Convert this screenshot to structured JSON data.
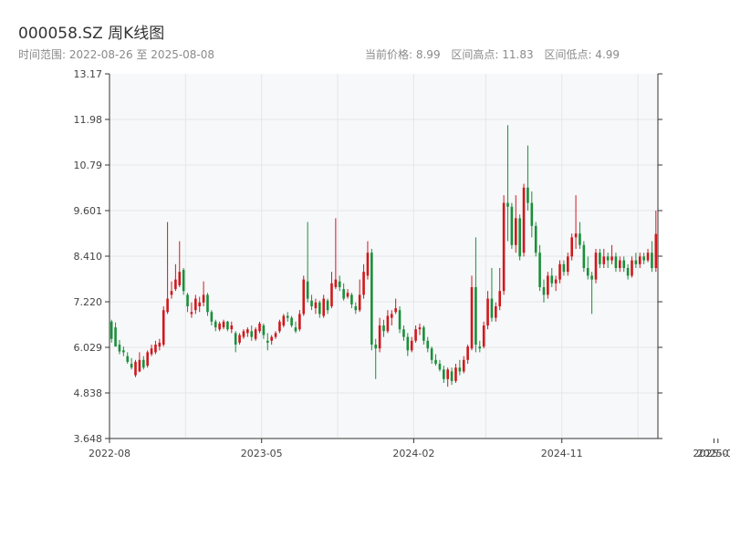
{
  "header": {
    "title": "000058.SZ 周K线图",
    "date_range_label": "时间范围:",
    "date_start": "2022-08-26",
    "date_sep": "至",
    "date_end": "2025-08-08",
    "current_price": "当前价格: 8.99",
    "range_high": "区间高点: 11.83",
    "range_low": "区间低点: 4.99"
  },
  "colors": {
    "up": "#d0181c",
    "down": "#1a8f3a",
    "plot_bg": "#f7f8fa",
    "grid": "#e3e6eb",
    "axis": "#333333"
  },
  "chart_data": {
    "type": "candlestick",
    "y_ticks": [
      "13.17",
      "11.98",
      "10.79",
      "9.601",
      "8.410",
      "7.220",
      "6.029",
      "4.838",
      "3.648"
    ],
    "ylim": [
      3.648,
      13.17
    ],
    "x_tick_labels": [
      "2022-08",
      "2023-05",
      "2024-02",
      "2024-11",
      "2025-07",
      "2025-08"
    ],
    "x_tick_weeks": [
      0,
      38,
      76,
      113,
      151,
      152
    ],
    "grid": true,
    "candles": [
      [
        6.7,
        6.75,
        6.15,
        6.25
      ],
      [
        6.55,
        6.68,
        6.05,
        6.05
      ],
      [
        6.1,
        6.22,
        5.85,
        5.92
      ],
      [
        5.95,
        6.05,
        5.8,
        5.9
      ],
      [
        5.8,
        5.9,
        5.6,
        5.65
      ],
      [
        5.6,
        5.75,
        5.45,
        5.5
      ],
      [
        5.3,
        5.7,
        5.25,
        5.65
      ],
      [
        5.4,
        5.9,
        5.38,
        5.7
      ],
      [
        5.7,
        5.8,
        5.45,
        5.5
      ],
      [
        5.55,
        5.95,
        5.5,
        5.9
      ],
      [
        5.85,
        6.1,
        5.8,
        6.0
      ],
      [
        5.9,
        6.2,
        5.85,
        6.1
      ],
      [
        6.05,
        6.25,
        5.95,
        6.15
      ],
      [
        6.1,
        7.1,
        6.05,
        7.0
      ],
      [
        6.95,
        9.3,
        6.9,
        7.3
      ],
      [
        7.4,
        7.75,
        7.3,
        7.5
      ],
      [
        7.55,
        8.2,
        7.5,
        7.8
      ],
      [
        7.65,
        8.8,
        7.6,
        8.0
      ],
      [
        8.05,
        8.1,
        7.4,
        7.5
      ],
      [
        7.4,
        7.45,
        6.95,
        7.1
      ],
      [
        6.9,
        7.2,
        6.8,
        6.95
      ],
      [
        7.0,
        7.4,
        6.9,
        7.3
      ],
      [
        7.1,
        7.35,
        6.95,
        7.2
      ],
      [
        7.2,
        7.75,
        7.1,
        7.4
      ],
      [
        7.4,
        7.45,
        6.85,
        6.95
      ],
      [
        6.95,
        7.0,
        6.6,
        6.7
      ],
      [
        6.7,
        6.75,
        6.45,
        6.55
      ],
      [
        6.5,
        6.7,
        6.45,
        6.65
      ],
      [
        6.55,
        6.75,
        6.5,
        6.7
      ],
      [
        6.7,
        6.72,
        6.45,
        6.5
      ],
      [
        6.5,
        6.7,
        6.4,
        6.6
      ],
      [
        6.4,
        6.45,
        5.9,
        6.1
      ],
      [
        6.15,
        6.4,
        6.1,
        6.35
      ],
      [
        6.3,
        6.5,
        6.25,
        6.45
      ],
      [
        6.4,
        6.55,
        6.3,
        6.5
      ],
      [
        6.45,
        6.6,
        6.2,
        6.3
      ],
      [
        6.25,
        6.55,
        6.2,
        6.5
      ],
      [
        6.45,
        6.7,
        6.4,
        6.65
      ],
      [
        6.6,
        6.65,
        6.25,
        6.35
      ],
      [
        6.2,
        6.4,
        5.95,
        6.15
      ],
      [
        6.2,
        6.35,
        6.1,
        6.3
      ],
      [
        6.3,
        6.45,
        6.25,
        6.4
      ],
      [
        6.45,
        6.75,
        6.4,
        6.7
      ],
      [
        6.6,
        6.9,
        6.55,
        6.85
      ],
      [
        6.85,
        6.95,
        6.7,
        6.8
      ],
      [
        6.8,
        6.85,
        6.55,
        6.6
      ],
      [
        6.55,
        6.7,
        6.4,
        6.45
      ],
      [
        6.5,
        7.0,
        6.45,
        6.9
      ],
      [
        6.9,
        7.9,
        6.85,
        7.8
      ],
      [
        7.75,
        9.3,
        7.2,
        7.3
      ],
      [
        7.25,
        7.4,
        7.0,
        7.1
      ],
      [
        7.05,
        7.3,
        6.9,
        7.2
      ],
      [
        7.2,
        7.25,
        6.8,
        6.9
      ],
      [
        6.85,
        7.4,
        6.8,
        7.3
      ],
      [
        7.25,
        7.3,
        6.9,
        7.0
      ],
      [
        7.1,
        8.0,
        7.05,
        7.7
      ],
      [
        7.6,
        9.4,
        7.55,
        7.8
      ],
      [
        7.75,
        7.9,
        7.5,
        7.6
      ],
      [
        7.55,
        7.7,
        7.25,
        7.3
      ],
      [
        7.35,
        7.55,
        7.3,
        7.45
      ],
      [
        7.4,
        7.45,
        7.05,
        7.15
      ],
      [
        7.1,
        7.2,
        6.9,
        7.0
      ],
      [
        7.0,
        7.8,
        6.95,
        7.4
      ],
      [
        7.4,
        8.2,
        7.3,
        8.0
      ],
      [
        7.9,
        8.8,
        7.8,
        8.5
      ],
      [
        8.5,
        8.6,
        5.95,
        6.1
      ],
      [
        6.1,
        6.25,
        5.2,
        6.0
      ],
      [
        6.0,
        6.8,
        5.9,
        6.6
      ],
      [
        6.6,
        6.75,
        6.3,
        6.45
      ],
      [
        6.45,
        7.0,
        6.4,
        6.85
      ],
      [
        6.8,
        7.0,
        6.6,
        6.9
      ],
      [
        6.95,
        7.3,
        6.9,
        7.05
      ],
      [
        7.0,
        7.1,
        6.4,
        6.5
      ],
      [
        6.5,
        6.6,
        6.2,
        6.3
      ],
      [
        6.3,
        6.4,
        5.8,
        5.95
      ],
      [
        5.95,
        6.3,
        5.9,
        6.2
      ],
      [
        6.2,
        6.6,
        6.15,
        6.5
      ],
      [
        6.5,
        6.65,
        6.35,
        6.55
      ],
      [
        6.55,
        6.6,
        6.1,
        6.2
      ],
      [
        6.2,
        6.3,
        5.9,
        6.0
      ],
      [
        6.0,
        6.05,
        5.6,
        5.7
      ],
      [
        5.7,
        5.85,
        5.55,
        5.6
      ],
      [
        5.6,
        5.7,
        5.4,
        5.45
      ],
      [
        5.45,
        5.55,
        5.1,
        5.2
      ],
      [
        5.2,
        5.5,
        5.0,
        5.45
      ],
      [
        5.4,
        5.5,
        5.05,
        5.15
      ],
      [
        5.15,
        5.6,
        5.1,
        5.5
      ],
      [
        5.5,
        5.7,
        5.3,
        5.4
      ],
      [
        5.4,
        5.8,
        5.35,
        5.7
      ],
      [
        5.7,
        6.1,
        5.6,
        6.05
      ],
      [
        6.0,
        7.9,
        5.95,
        7.6
      ],
      [
        7.6,
        8.9,
        5.9,
        6.1
      ],
      [
        6.05,
        6.2,
        5.9,
        6.0
      ],
      [
        6.05,
        6.7,
        6.0,
        6.6
      ],
      [
        6.6,
        7.5,
        6.5,
        7.3
      ],
      [
        7.3,
        8.1,
        6.7,
        6.8
      ],
      [
        6.8,
        7.2,
        6.7,
        7.1
      ],
      [
        7.1,
        8.1,
        7.0,
        7.5
      ],
      [
        7.5,
        10.0,
        7.4,
        9.8
      ],
      [
        9.8,
        11.83,
        8.8,
        9.7
      ],
      [
        9.7,
        9.8,
        8.6,
        8.7
      ],
      [
        8.7,
        10.0,
        8.5,
        9.4
      ],
      [
        9.4,
        9.5,
        8.3,
        8.4
      ],
      [
        8.5,
        10.3,
        8.4,
        10.2
      ],
      [
        10.2,
        11.3,
        9.6,
        9.8
      ],
      [
        9.8,
        10.1,
        8.9,
        9.2
      ],
      [
        9.2,
        9.3,
        8.4,
        8.5
      ],
      [
        8.5,
        8.7,
        7.5,
        7.6
      ],
      [
        7.6,
        7.8,
        7.2,
        7.4
      ],
      [
        7.4,
        8.0,
        7.3,
        7.9
      ],
      [
        7.9,
        8.1,
        7.6,
        7.7
      ],
      [
        7.7,
        7.9,
        7.5,
        7.8
      ],
      [
        7.8,
        8.3,
        7.7,
        8.2
      ],
      [
        8.2,
        8.3,
        7.9,
        8.0
      ],
      [
        8.0,
        8.5,
        7.9,
        8.4
      ],
      [
        8.4,
        9.0,
        8.3,
        8.9
      ],
      [
        8.9,
        10.0,
        8.6,
        9.0
      ],
      [
        9.0,
        9.3,
        8.6,
        8.7
      ],
      [
        8.7,
        8.8,
        8.0,
        8.1
      ],
      [
        8.1,
        8.4,
        7.8,
        7.9
      ],
      [
        7.9,
        8.0,
        6.9,
        7.8
      ],
      [
        7.8,
        8.6,
        7.7,
        8.5
      ],
      [
        8.5,
        8.6,
        8.1,
        8.2
      ],
      [
        8.2,
        8.6,
        8.1,
        8.4
      ],
      [
        8.4,
        8.5,
        8.1,
        8.3
      ],
      [
        8.3,
        8.7,
        8.2,
        8.4
      ],
      [
        8.4,
        8.5,
        8.0,
        8.1
      ],
      [
        8.1,
        8.4,
        8.0,
        8.3
      ],
      [
        8.3,
        8.4,
        8.0,
        8.1
      ],
      [
        8.1,
        8.2,
        7.8,
        7.9
      ],
      [
        7.9,
        8.4,
        7.85,
        8.3
      ],
      [
        8.3,
        8.5,
        8.1,
        8.2
      ],
      [
        8.2,
        8.5,
        8.1,
        8.4
      ],
      [
        8.4,
        8.5,
        8.2,
        8.3
      ],
      [
        8.3,
        8.6,
        8.25,
        8.5
      ],
      [
        8.5,
        8.8,
        8.0,
        8.1
      ],
      [
        8.1,
        9.6,
        8.0,
        8.99
      ]
    ]
  }
}
